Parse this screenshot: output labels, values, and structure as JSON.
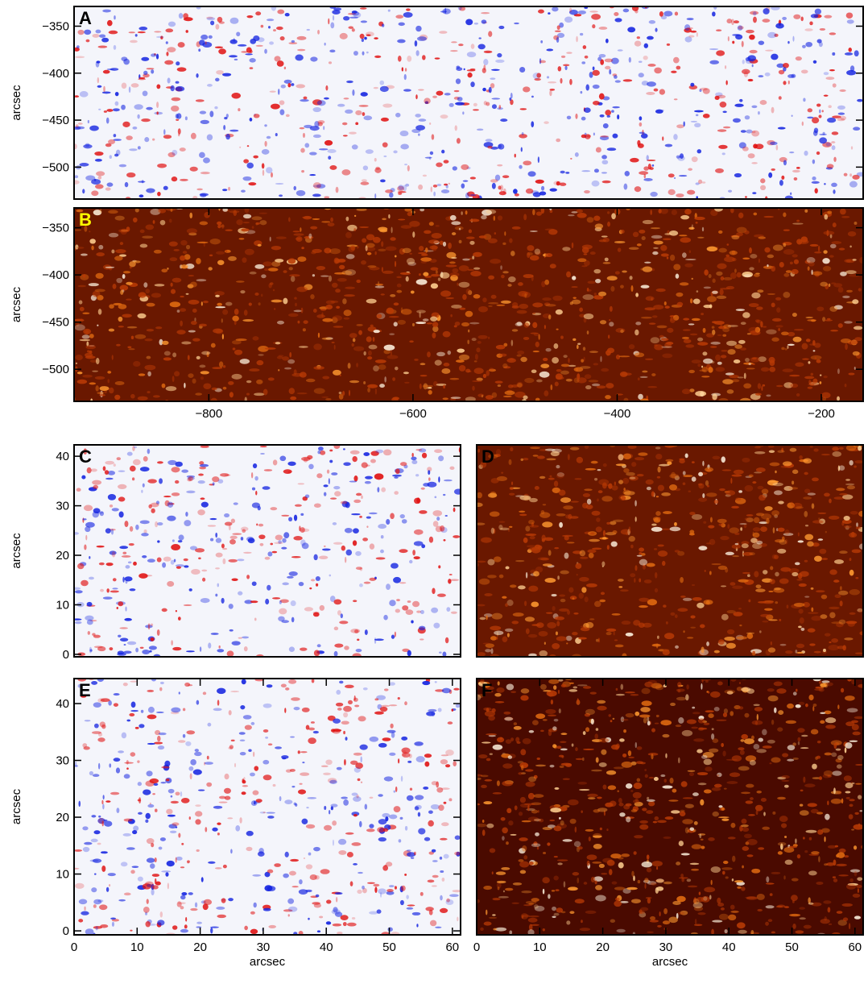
{
  "panels": [
    {
      "label": "A",
      "label_color": "#000000",
      "colormap": "bwr",
      "ylabel": "arcsec",
      "xlim": [
        -932,
        -159
      ],
      "ylim": [
        -534,
        -329
      ],
      "yticks": [
        {
          "value": -350,
          "label": "−350"
        },
        {
          "value": -400,
          "label": "−400"
        },
        {
          "value": -450,
          "label": "−450"
        },
        {
          "value": -500,
          "label": "−500"
        }
      ]
    },
    {
      "label": "B",
      "label_color": "#ffff00",
      "colormap": "heat",
      "ylabel": "arcsec",
      "xlim": [
        -932,
        -159
      ],
      "ylim": [
        -534,
        -329
      ],
      "xticks": [
        {
          "value": -800,
          "label": "−800"
        },
        {
          "value": -600,
          "label": "−600"
        },
        {
          "value": -400,
          "label": "−400"
        },
        {
          "value": -200,
          "label": "−200"
        }
      ],
      "yticks": [
        {
          "value": -350,
          "label": "−350"
        },
        {
          "value": -400,
          "label": "−400"
        },
        {
          "value": -450,
          "label": "−450"
        },
        {
          "value": -500,
          "label": "−500"
        }
      ]
    },
    {
      "label": "C",
      "label_color": "#000000",
      "colormap": "bwr",
      "ylabel": "arcsec",
      "xlim": [
        0,
        61.3
      ],
      "ylim": [
        -0.5,
        42.3
      ],
      "yticks": [
        0,
        10,
        20,
        30,
        40
      ]
    },
    {
      "label": "D",
      "label_color": "#000000",
      "colormap": "heat",
      "xlim": [
        0,
        61.3
      ],
      "ylim": [
        -0.5,
        42.3
      ]
    },
    {
      "label": "E",
      "label_color": "#000000",
      "colormap": "bwr",
      "ylabel": "arcsec",
      "xlabel": "arcsec",
      "xlim": [
        0,
        61.3
      ],
      "ylim": [
        -0.7,
        44.4
      ],
      "xticks": [
        0,
        10,
        20,
        30,
        40,
        50,
        60
      ],
      "yticks": [
        0,
        10,
        20,
        30,
        40
      ]
    },
    {
      "label": "F",
      "label_color": "#000000",
      "colormap": "heat",
      "xlabel": "arcsec",
      "xlim": [
        0,
        61.3
      ],
      "ylim": [
        -0.7,
        44.4
      ],
      "xticks": [
        0,
        10,
        20,
        30,
        40,
        50,
        60
      ]
    }
  ]
}
